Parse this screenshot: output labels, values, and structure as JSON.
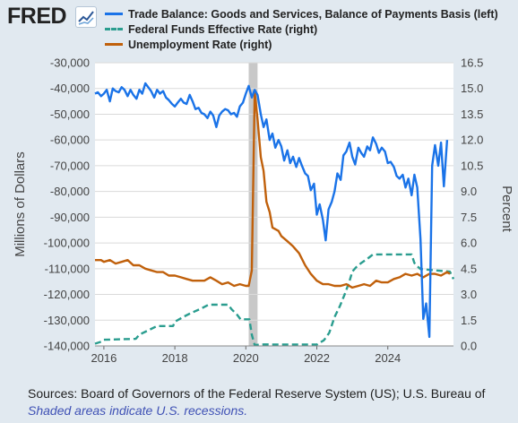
{
  "header": {
    "logo_text": "FRED",
    "logo_icon": "trend-line-icon"
  },
  "chart_data": {
    "type": "line",
    "title": "",
    "xlabel": "",
    "ylabel_left": "Millions of Dollars",
    "ylabel_right": "Percent",
    "xlim": [
      2015.75,
      2025.85
    ],
    "ylim_left": [
      -140000,
      -30000
    ],
    "ylim_right": [
      0,
      16.5
    ],
    "x_ticks": [
      2016,
      2018,
      2020,
      2022,
      2024
    ],
    "x_tick_labels": [
      "2016",
      "2018",
      "2020",
      "2022",
      "2024"
    ],
    "y_left_ticks": [
      -30000,
      -40000,
      -50000,
      -60000,
      -70000,
      -80000,
      -90000,
      -100000,
      -110000,
      -120000,
      -130000,
      -140000
    ],
    "y_left_tick_labels": [
      "-30,000",
      "-40,000",
      "-50,000",
      "-60,000",
      "-70,000",
      "-80,000",
      "-90,000",
      "-100,000",
      "-110,000",
      "-120,000",
      "-130,000",
      "-140,000"
    ],
    "y_right_ticks": [
      16.5,
      15.0,
      13.5,
      12.0,
      10.5,
      9.0,
      7.5,
      6.0,
      4.5,
      3.0,
      1.5,
      0.0
    ],
    "y_right_tick_labels": [
      "16.5",
      "15.0",
      "13.5",
      "12.0",
      "10.5",
      "9.0",
      "7.5",
      "6.0",
      "4.5",
      "3.0",
      "1.5",
      "0.0"
    ],
    "grid": "horizontal",
    "legend_position": "top",
    "recessions": [
      [
        2020.08,
        2020.33
      ]
    ],
    "series": [
      {
        "name": "Trade Balance: Goods and Services, Balance of Payments Basis (left)",
        "axis": "left",
        "color": "#1a73e8",
        "style": "solid",
        "points": [
          [
            2015.75,
            -42000
          ],
          [
            2015.83,
            -41500
          ],
          [
            2015.92,
            -43000
          ],
          [
            2016.0,
            -42000
          ],
          [
            2016.08,
            -40500
          ],
          [
            2016.17,
            -45000
          ],
          [
            2016.25,
            -40000
          ],
          [
            2016.33,
            -41000
          ],
          [
            2016.42,
            -41500
          ],
          [
            2016.5,
            -39500
          ],
          [
            2016.58,
            -40500
          ],
          [
            2016.67,
            -43000
          ],
          [
            2016.75,
            -40500
          ],
          [
            2016.83,
            -42500
          ],
          [
            2016.92,
            -44000
          ],
          [
            2017.0,
            -40500
          ],
          [
            2017.08,
            -42000
          ],
          [
            2017.17,
            -38000
          ],
          [
            2017.25,
            -39500
          ],
          [
            2017.33,
            -41000
          ],
          [
            2017.42,
            -43500
          ],
          [
            2017.5,
            -40500
          ],
          [
            2017.58,
            -42000
          ],
          [
            2017.67,
            -41000
          ],
          [
            2017.75,
            -43500
          ],
          [
            2017.83,
            -44500
          ],
          [
            2017.92,
            -46000
          ],
          [
            2018.0,
            -47000
          ],
          [
            2018.08,
            -45500
          ],
          [
            2018.17,
            -44000
          ],
          [
            2018.25,
            -45500
          ],
          [
            2018.33,
            -46000
          ],
          [
            2018.42,
            -42500
          ],
          [
            2018.5,
            -45000
          ],
          [
            2018.58,
            -48000
          ],
          [
            2018.67,
            -47500
          ],
          [
            2018.75,
            -49500
          ],
          [
            2018.83,
            -50000
          ],
          [
            2018.92,
            -51500
          ],
          [
            2019.0,
            -49000
          ],
          [
            2019.08,
            -50500
          ],
          [
            2019.17,
            -55000
          ],
          [
            2019.25,
            -50500
          ],
          [
            2019.33,
            -49000
          ],
          [
            2019.42,
            -48000
          ],
          [
            2019.5,
            -48500
          ],
          [
            2019.58,
            -50000
          ],
          [
            2019.67,
            -49500
          ],
          [
            2019.75,
            -51000
          ],
          [
            2019.83,
            -47000
          ],
          [
            2019.92,
            -45500
          ],
          [
            2020.0,
            -42000
          ],
          [
            2020.08,
            -39000
          ],
          [
            2020.17,
            -43500
          ],
          [
            2020.25,
            -40500
          ],
          [
            2020.33,
            -42500
          ],
          [
            2020.42,
            -50000
          ],
          [
            2020.5,
            -55000
          ],
          [
            2020.58,
            -52000
          ],
          [
            2020.67,
            -60000
          ],
          [
            2020.75,
            -57500
          ],
          [
            2020.83,
            -63000
          ],
          [
            2020.92,
            -60000
          ],
          [
            2021.0,
            -62500
          ],
          [
            2021.08,
            -68000
          ],
          [
            2021.17,
            -64000
          ],
          [
            2021.25,
            -69000
          ],
          [
            2021.33,
            -66500
          ],
          [
            2021.42,
            -70500
          ],
          [
            2021.5,
            -67000
          ],
          [
            2021.58,
            -70000
          ],
          [
            2021.67,
            -73000
          ],
          [
            2021.75,
            -74000
          ],
          [
            2021.83,
            -79500
          ],
          [
            2021.92,
            -77000
          ],
          [
            2022.0,
            -89000
          ],
          [
            2022.08,
            -85000
          ],
          [
            2022.17,
            -91000
          ],
          [
            2022.25,
            -99000
          ],
          [
            2022.33,
            -87000
          ],
          [
            2022.42,
            -84000
          ],
          [
            2022.5,
            -80000
          ],
          [
            2022.58,
            -73000
          ],
          [
            2022.67,
            -75500
          ],
          [
            2022.75,
            -66000
          ],
          [
            2022.83,
            -64500
          ],
          [
            2022.92,
            -61000
          ],
          [
            2023.0,
            -66500
          ],
          [
            2023.08,
            -69500
          ],
          [
            2023.17,
            -63000
          ],
          [
            2023.25,
            -65000
          ],
          [
            2023.33,
            -66500
          ],
          [
            2023.42,
            -62500
          ],
          [
            2023.5,
            -64000
          ],
          [
            2023.58,
            -59000
          ],
          [
            2023.67,
            -61500
          ],
          [
            2023.75,
            -65000
          ],
          [
            2023.83,
            -63000
          ],
          [
            2023.92,
            -64500
          ],
          [
            2024.0,
            -69000
          ],
          [
            2024.08,
            -68500
          ],
          [
            2024.17,
            -70500
          ],
          [
            2024.25,
            -74000
          ],
          [
            2024.33,
            -75000
          ],
          [
            2024.42,
            -73500
          ],
          [
            2024.5,
            -78500
          ],
          [
            2024.58,
            -75000
          ],
          [
            2024.67,
            -81500
          ],
          [
            2024.75,
            -73500
          ],
          [
            2024.83,
            -78500
          ],
          [
            2024.92,
            -98500
          ],
          [
            2025.0,
            -129500
          ],
          [
            2025.08,
            -123500
          ],
          [
            2025.17,
            -136500
          ],
          [
            2025.25,
            -70000
          ],
          [
            2025.33,
            -62000
          ],
          [
            2025.42,
            -70000
          ],
          [
            2025.5,
            -61000
          ],
          [
            2025.58,
            -78000
          ],
          [
            2025.67,
            -60000
          ]
        ]
      },
      {
        "name": "Federal Funds Effective Rate (right)",
        "axis": "right",
        "color": "#2a9d8f",
        "style": "dashed",
        "points": [
          [
            2015.75,
            0.13
          ],
          [
            2015.92,
            0.24
          ],
          [
            2016.0,
            0.36
          ],
          [
            2016.9,
            0.41
          ],
          [
            2017.0,
            0.66
          ],
          [
            2017.25,
            0.91
          ],
          [
            2017.5,
            1.16
          ],
          [
            2017.95,
            1.16
          ],
          [
            2018.0,
            1.41
          ],
          [
            2018.25,
            1.7
          ],
          [
            2018.45,
            1.91
          ],
          [
            2018.75,
            2.18
          ],
          [
            2018.95,
            2.4
          ],
          [
            2019.5,
            2.4
          ],
          [
            2019.6,
            2.13
          ],
          [
            2019.75,
            1.83
          ],
          [
            2019.85,
            1.55
          ],
          [
            2020.1,
            1.55
          ],
          [
            2020.17,
            0.65
          ],
          [
            2020.25,
            0.05
          ],
          [
            2020.5,
            0.09
          ],
          [
            2021.0,
            0.08
          ],
          [
            2021.5,
            0.08
          ],
          [
            2022.0,
            0.08
          ],
          [
            2022.2,
            0.33
          ],
          [
            2022.35,
            0.77
          ],
          [
            2022.5,
            1.68
          ],
          [
            2022.65,
            2.33
          ],
          [
            2022.8,
            3.08
          ],
          [
            2022.92,
            3.78
          ],
          [
            2023.0,
            4.33
          ],
          [
            2023.1,
            4.57
          ],
          [
            2023.25,
            4.83
          ],
          [
            2023.42,
            5.07
          ],
          [
            2023.58,
            5.33
          ],
          [
            2024.67,
            5.33
          ],
          [
            2024.75,
            4.83
          ],
          [
            2024.83,
            4.64
          ],
          [
            2024.92,
            4.48
          ],
          [
            2025.75,
            4.33
          ],
          [
            2025.85,
            3.9
          ]
        ]
      },
      {
        "name": "Unemployment Rate (right)",
        "axis": "right",
        "color": "#c0600b",
        "style": "solid",
        "points": [
          [
            2015.75,
            5.0
          ],
          [
            2015.92,
            5.0
          ],
          [
            2016.0,
            4.9
          ],
          [
            2016.17,
            5.0
          ],
          [
            2016.33,
            4.8
          ],
          [
            2016.5,
            4.9
          ],
          [
            2016.67,
            5.0
          ],
          [
            2016.83,
            4.7
          ],
          [
            2017.0,
            4.7
          ],
          [
            2017.17,
            4.5
          ],
          [
            2017.33,
            4.4
          ],
          [
            2017.5,
            4.3
          ],
          [
            2017.67,
            4.3
          ],
          [
            2017.83,
            4.1
          ],
          [
            2018.0,
            4.1
          ],
          [
            2018.17,
            4.0
          ],
          [
            2018.33,
            3.9
          ],
          [
            2018.5,
            3.8
          ],
          [
            2018.67,
            3.8
          ],
          [
            2018.83,
            3.8
          ],
          [
            2019.0,
            4.0
          ],
          [
            2019.17,
            3.8
          ],
          [
            2019.33,
            3.6
          ],
          [
            2019.5,
            3.7
          ],
          [
            2019.67,
            3.5
          ],
          [
            2019.83,
            3.6
          ],
          [
            2020.0,
            3.5
          ],
          [
            2020.08,
            3.5
          ],
          [
            2020.17,
            4.4
          ],
          [
            2020.25,
            14.8
          ],
          [
            2020.33,
            13.2
          ],
          [
            2020.42,
            11.0
          ],
          [
            2020.5,
            10.2
          ],
          [
            2020.58,
            8.4
          ],
          [
            2020.67,
            7.8
          ],
          [
            2020.75,
            6.9
          ],
          [
            2020.92,
            6.7
          ],
          [
            2021.0,
            6.4
          ],
          [
            2021.17,
            6.1
          ],
          [
            2021.33,
            5.8
          ],
          [
            2021.5,
            5.4
          ],
          [
            2021.67,
            4.7
          ],
          [
            2021.83,
            4.2
          ],
          [
            2022.0,
            3.8
          ],
          [
            2022.17,
            3.6
          ],
          [
            2022.33,
            3.6
          ],
          [
            2022.5,
            3.5
          ],
          [
            2022.67,
            3.5
          ],
          [
            2022.83,
            3.6
          ],
          [
            2023.0,
            3.4
          ],
          [
            2023.17,
            3.5
          ],
          [
            2023.33,
            3.6
          ],
          [
            2023.5,
            3.5
          ],
          [
            2023.67,
            3.8
          ],
          [
            2023.83,
            3.7
          ],
          [
            2024.0,
            3.7
          ],
          [
            2024.17,
            3.9
          ],
          [
            2024.33,
            4.0
          ],
          [
            2024.5,
            4.2
          ],
          [
            2024.67,
            4.1
          ],
          [
            2024.83,
            4.2
          ],
          [
            2025.0,
            4.0
          ],
          [
            2025.17,
            4.2
          ],
          [
            2025.33,
            4.2
          ],
          [
            2025.5,
            4.1
          ],
          [
            2025.67,
            4.3
          ],
          [
            2025.75,
            4.2
          ]
        ]
      }
    ]
  },
  "footer": {
    "sources": "Sources: Board of Governors of the Federal Reserve System (US); U.S. Bureau of",
    "note": "Shaded areas indicate U.S. recessions."
  }
}
